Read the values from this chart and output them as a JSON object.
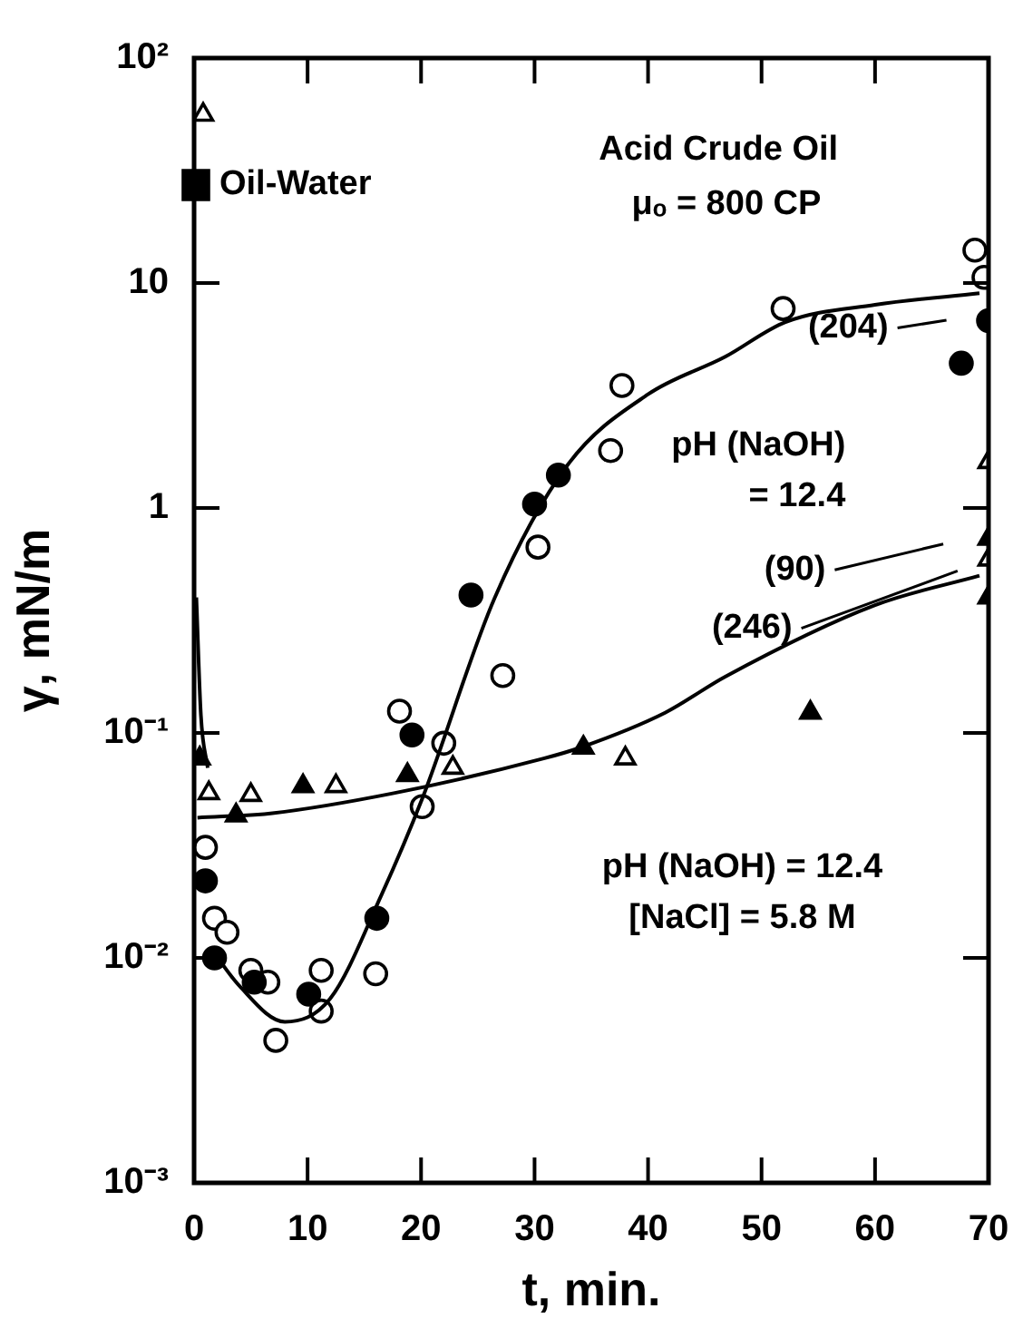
{
  "chart_data": {
    "type": "scatter",
    "xlabel": "t, min.",
    "ylabel": "γ, mN/m",
    "xlim": [
      0,
      70
    ],
    "xticks": [
      0,
      10,
      20,
      30,
      40,
      50,
      60,
      70
    ],
    "ylim": [
      0.001,
      100
    ],
    "log": "y",
    "yticks": [
      {
        "value": 0.001,
        "label": "10⁻³"
      },
      {
        "value": 0.01,
        "label": "10⁻²"
      },
      {
        "value": 0.1,
        "label": "10⁻¹"
      },
      {
        "value": 1,
        "label": "1"
      },
      {
        "value": 10,
        "label": "10"
      },
      {
        "value": 100,
        "label": "10²"
      }
    ],
    "grid": false,
    "legend": "top left",
    "annotations": [
      "Acid Crude Oil",
      "μₒ = 800 CP",
      "pH (NaOH)\n= 12.4",
      "pH (NaOH) = 12.4\n[NaCl] = 5.8 M",
      "(204)",
      "(90)",
      "(246)"
    ],
    "series": [
      {
        "marker": "circle",
        "color": "#ffffff",
        "x": [
          1.0,
          1.8,
          2.9,
          5.0,
          6.5,
          7.2,
          11.2,
          11.2,
          16.0,
          18.1,
          20.1,
          22.0,
          27.2,
          30.3,
          36.7,
          37.7,
          51.9,
          68.8,
          69.6
        ],
        "values": [
          0.031,
          0.015,
          0.013,
          0.0088,
          0.0078,
          0.0043,
          0.0088,
          0.0058,
          0.0085,
          0.125,
          0.047,
          0.09,
          0.18,
          0.67,
          1.8,
          3.5,
          7.7,
          14,
          10.6
        ]
      },
      {
        "marker": "circle",
        "color": "#000000",
        "x": [
          1.0,
          1.8,
          5.3,
          10.1,
          16.1,
          19.2,
          24.4,
          30.0,
          32.1,
          67.6,
          70
        ],
        "values": [
          0.022,
          0.01,
          0.0078,
          0.0069,
          0.015,
          0.098,
          0.41,
          1.04,
          1.4,
          4.4,
          6.8
        ]
      },
      {
        "marker": "triangle",
        "color": "#ffffff",
        "x": [
          0.8,
          1.3,
          5.0,
          12.5,
          22.8,
          38.0,
          70,
          70
        ],
        "values": [
          56,
          0.054,
          0.053,
          0.058,
          0.07,
          0.077,
          1.6,
          0.59
        ]
      },
      {
        "marker": "triangle",
        "color": "#000000",
        "x": [
          0.5,
          3.7,
          9.6,
          18.8,
          34.3,
          54.3,
          70,
          70
        ],
        "values": [
          0.077,
          0.043,
          0.058,
          0.065,
          0.086,
          0.123,
          0.73,
          0.4
        ]
      },
      {
        "type": "line",
        "color": "#000000",
        "x": [
          1.5,
          4,
          8,
          12,
          16.5,
          20.1,
          26.5,
          32.9,
          40,
          46.8,
          52.1,
          60,
          69.2
        ],
        "values": [
          0.011,
          0.0075,
          0.0052,
          0.0066,
          0.019,
          0.051,
          0.4,
          1.55,
          3.2,
          4.7,
          6.7,
          8.0,
          9.0
        ]
      },
      {
        "type": "line",
        "color": "#000000",
        "x": [
          0.3,
          6.9,
          17.6,
          30.8,
          34,
          41.5,
          46.8,
          60,
          69.2
        ],
        "values": [
          0.042,
          0.044,
          0.054,
          0.077,
          0.086,
          0.123,
          0.178,
          0.37,
          0.5
        ]
      },
      {
        "type": "line",
        "color": "#000000",
        "x": [
          0.2,
          0.6,
          1.2
        ],
        "values": [
          0.4,
          0.12,
          0.07
        ]
      },
      {
        "marker": "square",
        "color": "#000000",
        "name": "Oil-Water"
      }
    ]
  }
}
